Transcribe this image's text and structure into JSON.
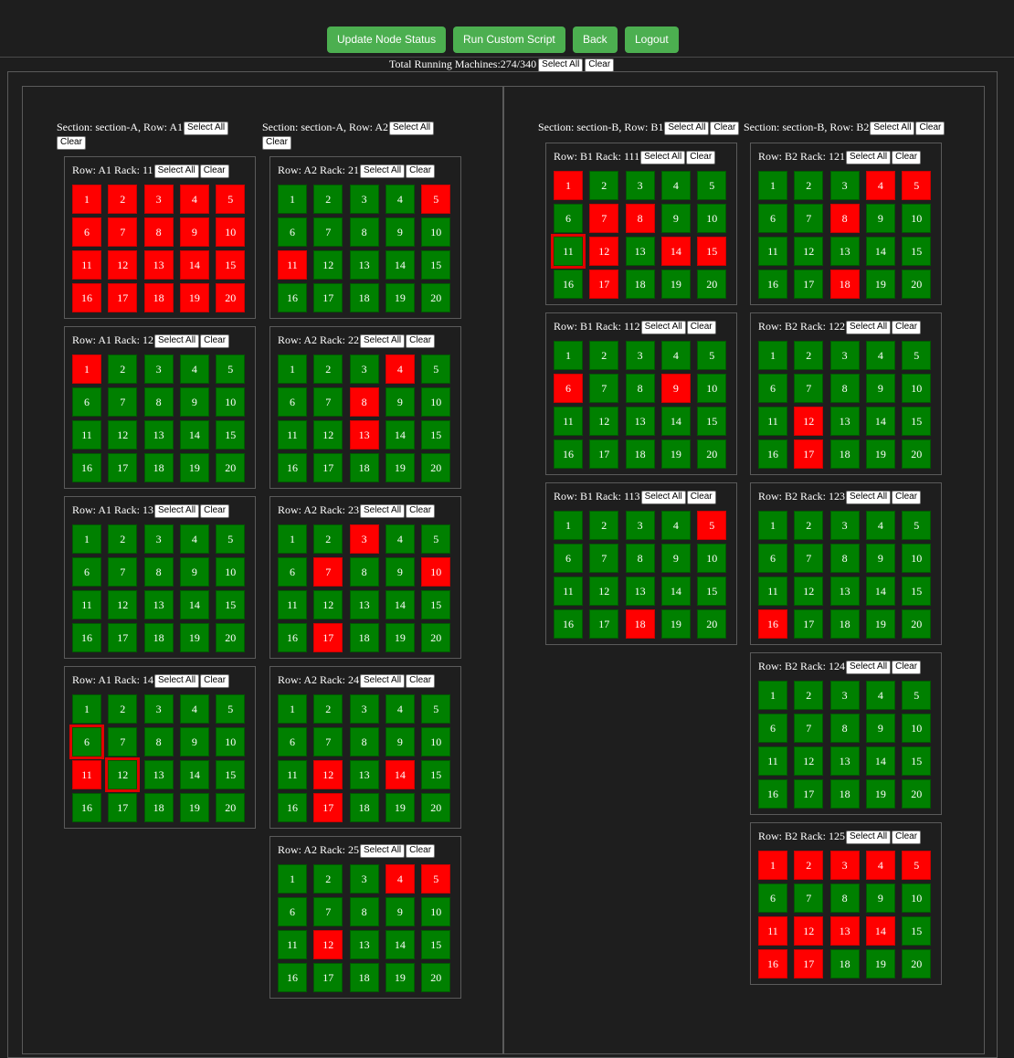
{
  "nav": {
    "buttons": [
      {
        "key": "update",
        "label": "Update Node Status"
      },
      {
        "key": "script",
        "label": "Run Custom Script"
      },
      {
        "key": "back",
        "label": "Back"
      },
      {
        "key": "logout",
        "label": "Logout"
      }
    ]
  },
  "summary": {
    "text": "Total Running Machines:274/340",
    "select_all": "Select All",
    "clear": "Clear"
  },
  "colors": {
    "running": "#008000",
    "stopped": "#ff0000",
    "button_green": "#4caf50",
    "highlight": "#e00000"
  },
  "sections": [
    {
      "name": "section-A",
      "rows": [
        {
          "label": "Section: section-A, Row: A1",
          "racks": [
            {
              "title": "Row: A1 Rack: 11",
              "red": [
                1,
                2,
                3,
                4,
                5,
                6,
                7,
                8,
                9,
                10,
                11,
                12,
                13,
                14,
                15,
                16,
                17,
                18,
                19,
                20
              ],
              "selected": []
            },
            {
              "title": "Row: A1 Rack: 12",
              "red": [
                1
              ],
              "selected": []
            },
            {
              "title": "Row: A1 Rack: 13",
              "red": [],
              "selected": []
            },
            {
              "title": "Row: A1 Rack: 14",
              "red": [
                11
              ],
              "selected": [
                6,
                12
              ]
            }
          ]
        },
        {
          "label": "Section: section-A, Row: A2",
          "racks": [
            {
              "title": "Row: A2 Rack: 21",
              "red": [
                5,
                11
              ],
              "selected": []
            },
            {
              "title": "Row: A2 Rack: 22",
              "red": [
                4,
                8,
                13
              ],
              "selected": []
            },
            {
              "title": "Row: A2 Rack: 23",
              "red": [
                3,
                7,
                10,
                17
              ],
              "selected": []
            },
            {
              "title": "Row: A2 Rack: 24",
              "red": [
                12,
                14,
                17
              ],
              "selected": []
            },
            {
              "title": "Row: A2 Rack: 25",
              "red": [
                4,
                5,
                12
              ],
              "selected": []
            }
          ]
        }
      ]
    },
    {
      "name": "section-B",
      "rows": [
        {
          "label": "Section: section-B, Row: B1",
          "racks": [
            {
              "title": "Row: B1 Rack: 111",
              "red": [
                1,
                7,
                8,
                12,
                14,
                15,
                17
              ],
              "selected": [
                11
              ]
            },
            {
              "title": "Row: B1 Rack: 112",
              "red": [
                6,
                9
              ],
              "selected": []
            },
            {
              "title": "Row: B1 Rack: 113",
              "red": [
                5,
                18
              ],
              "selected": []
            }
          ]
        },
        {
          "label": "Section: section-B, Row: B2",
          "racks": [
            {
              "title": "Row: B2 Rack: 121",
              "red": [
                4,
                5,
                8,
                18
              ],
              "selected": []
            },
            {
              "title": "Row: B2 Rack: 122",
              "red": [
                12,
                17
              ],
              "selected": []
            },
            {
              "title": "Row: B2 Rack: 123",
              "red": [
                16
              ],
              "selected": []
            },
            {
              "title": "Row: B2 Rack: 124",
              "red": [],
              "selected": []
            },
            {
              "title": "Row: B2 Rack: 125",
              "red": [
                1,
                2,
                3,
                4,
                5,
                11,
                12,
                13,
                14,
                16,
                17
              ],
              "selected": []
            }
          ]
        }
      ]
    }
  ],
  "labels": {
    "select_all": "Select All",
    "clear": "Clear"
  }
}
